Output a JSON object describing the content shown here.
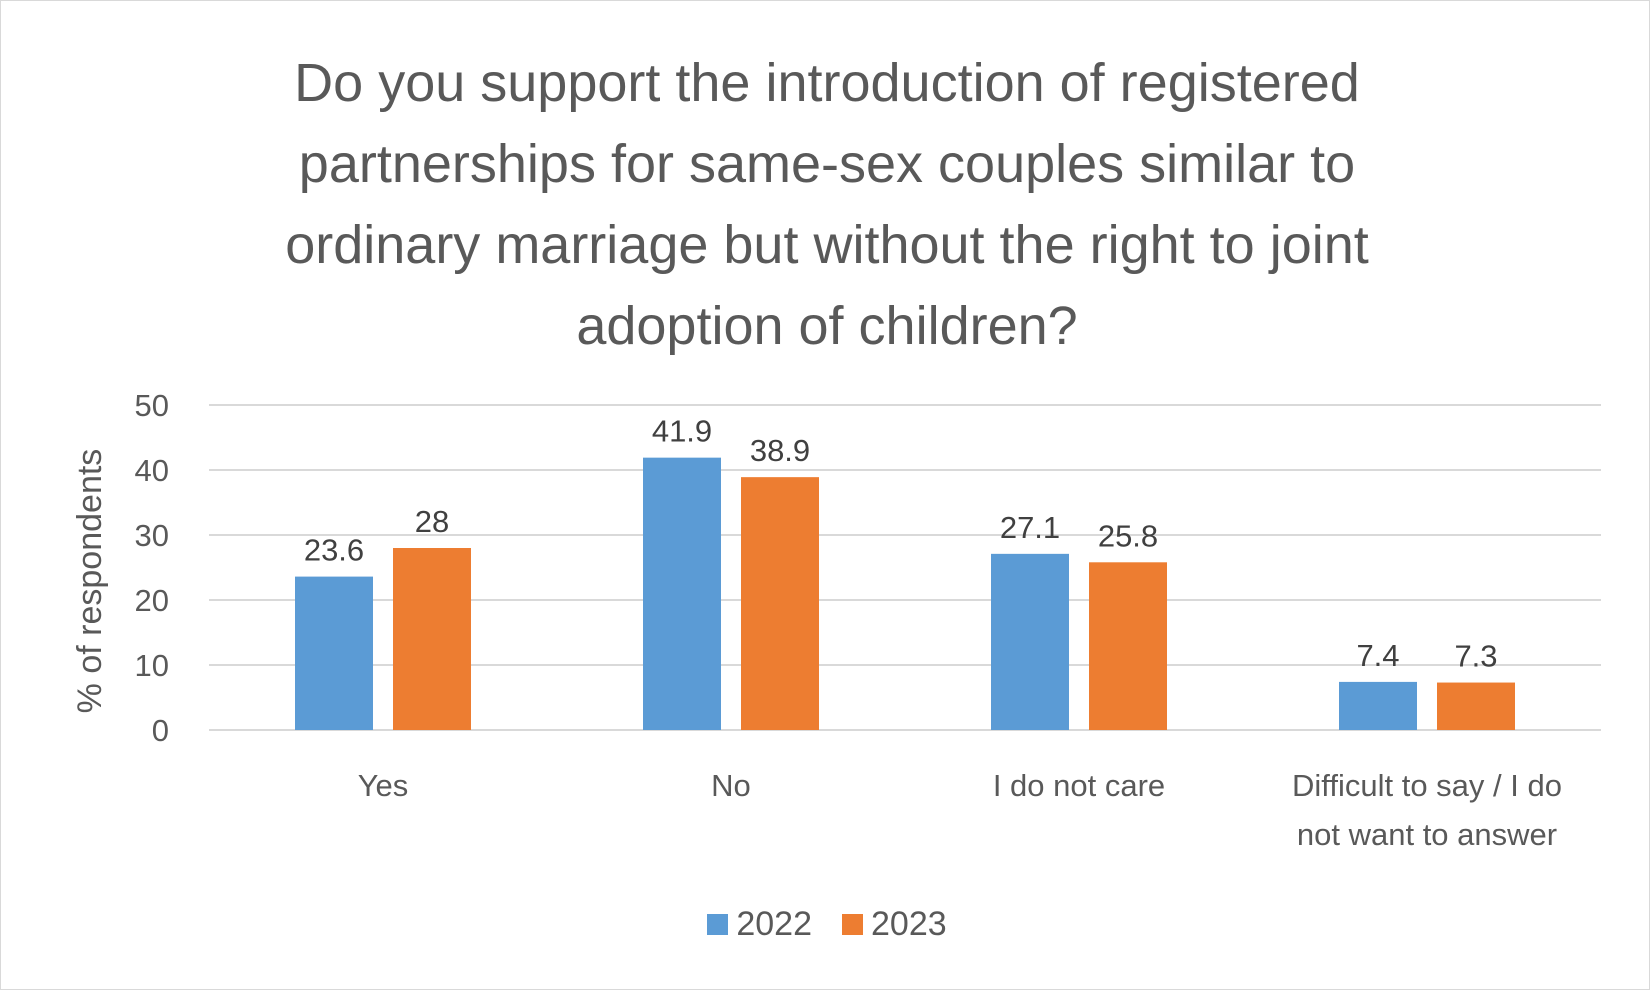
{
  "chart_data": {
    "type": "bar",
    "title_lines": [
      "Do you support the introduction of registered",
      "partnerships for same-sex couples similar to",
      "ordinary marriage but without the right to joint",
      "adoption of children?"
    ],
    "xlabel": "",
    "ylabel": "% of respondents",
    "ylim": [
      0,
      50
    ],
    "yticks": [
      "0",
      "10",
      "20",
      "30",
      "40",
      "50"
    ],
    "grid": true,
    "legend_position": "bottom",
    "categories": [
      [
        "Yes"
      ],
      [
        "No"
      ],
      [
        "I do not care"
      ],
      [
        "Difficult to say / I do",
        "not want to answer"
      ]
    ],
    "series": [
      {
        "name": "2022",
        "color": "#5b9bd5",
        "values": [
          23.6,
          41.9,
          27.1,
          7.4
        ],
        "labels": [
          "23.6",
          "41.9",
          "27.1",
          "7.4"
        ]
      },
      {
        "name": "2023",
        "color": "#ed7d31",
        "values": [
          28,
          38.9,
          25.8,
          7.3
        ],
        "labels": [
          "28",
          "38.9",
          "25.8",
          "7.3"
        ]
      }
    ]
  }
}
